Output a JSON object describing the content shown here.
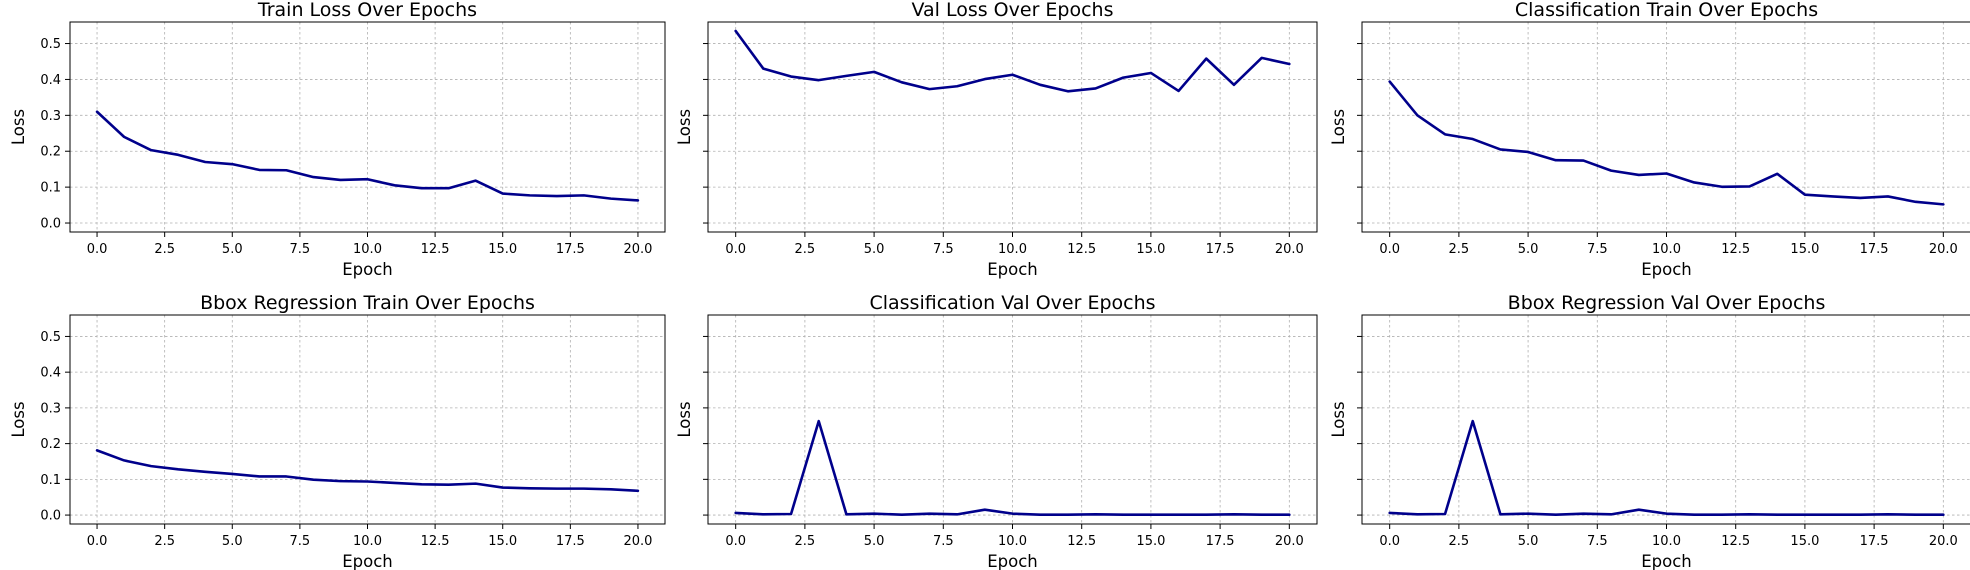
{
  "figure": {
    "line_color": "#00008b",
    "grid": true
  },
  "chart_data": [
    {
      "type": "line",
      "title": "Train Loss Over Epochs",
      "xlabel": "Epoch",
      "ylabel": "Loss",
      "xlim": [
        -1,
        21
      ],
      "ylim": [
        -0.025,
        0.56
      ],
      "xticks": [
        0,
        2.5,
        5,
        7.5,
        10,
        12.5,
        15,
        17.5,
        20
      ],
      "xtick_labels": [
        "0.0",
        "2.5",
        "5.0",
        "7.5",
        "10.0",
        "12.5",
        "15.0",
        "17.5",
        "20.0"
      ],
      "yticks": [
        0,
        0.1,
        0.2,
        0.3,
        0.4,
        0.5
      ],
      "ytick_labels": [
        "0.0",
        "0.1",
        "0.2",
        "0.3",
        "0.4",
        "0.5"
      ],
      "series": [
        {
          "x": [
            0,
            1,
            2,
            3,
            4,
            5,
            6,
            7,
            8,
            9,
            10,
            11,
            12,
            13,
            14,
            15,
            16,
            17,
            18,
            19,
            20
          ],
          "y": [
            0.31,
            0.24,
            0.203,
            0.19,
            0.17,
            0.164,
            0.148,
            0.147,
            0.128,
            0.12,
            0.122,
            0.105,
            0.097,
            0.097,
            0.118,
            0.082,
            0.077,
            0.075,
            0.077,
            0.068,
            0.063
          ]
        }
      ]
    },
    {
      "type": "line",
      "title": "Val Loss Over Epochs",
      "xlabel": "Epoch",
      "ylabel": "Loss",
      "xlim": [
        -1,
        21
      ],
      "ylim": [
        -0.025,
        0.56
      ],
      "xticks": [
        0,
        2.5,
        5,
        7.5,
        10,
        12.5,
        15,
        17.5,
        20
      ],
      "xtick_labels": [
        "0.0",
        "2.5",
        "5.0",
        "7.5",
        "10.0",
        "12.5",
        "15.0",
        "17.5",
        "20.0"
      ],
      "yticks": [
        0,
        0.1,
        0.2,
        0.3,
        0.4,
        0.5
      ],
      "ytick_labels": [],
      "series": [
        {
          "x": [
            0,
            1,
            2,
            3,
            4,
            5,
            6,
            7,
            8,
            9,
            10,
            11,
            12,
            13,
            14,
            15,
            16,
            17,
            18,
            19,
            20
          ],
          "y": [
            0.535,
            0.43,
            0.408,
            0.398,
            0.41,
            0.421,
            0.392,
            0.373,
            0.381,
            0.401,
            0.413,
            0.385,
            0.367,
            0.375,
            0.405,
            0.418,
            0.368,
            0.458,
            0.385,
            0.46,
            0.443
          ]
        }
      ]
    },
    {
      "type": "line",
      "title": "Classification Train Over Epochs",
      "xlabel": "Epoch",
      "ylabel": "Loss",
      "xlim": [
        -1,
        21
      ],
      "ylim": [
        -0.025,
        0.56
      ],
      "xticks": [
        0,
        2.5,
        5,
        7.5,
        10,
        12.5,
        15,
        17.5,
        20
      ],
      "xtick_labels": [
        "0.0",
        "2.5",
        "5.0",
        "7.5",
        "10.0",
        "12.5",
        "15.0",
        "17.5",
        "20.0"
      ],
      "yticks": [
        0,
        0.1,
        0.2,
        0.3,
        0.4,
        0.5
      ],
      "ytick_labels": [],
      "series": [
        {
          "x": [
            0,
            1,
            2,
            3,
            4,
            5,
            6,
            7,
            8,
            9,
            10,
            11,
            12,
            13,
            14,
            15,
            16,
            17,
            18,
            19,
            20
          ],
          "y": [
            0.394,
            0.3,
            0.247,
            0.234,
            0.205,
            0.198,
            0.175,
            0.174,
            0.146,
            0.134,
            0.138,
            0.113,
            0.101,
            0.102,
            0.137,
            0.079,
            0.074,
            0.07,
            0.074,
            0.059,
            0.052
          ]
        }
      ]
    },
    {
      "type": "line",
      "title": "Bbox Regression Train Over Epochs",
      "xlabel": "Epoch",
      "ylabel": "Loss",
      "xlim": [
        -1,
        21
      ],
      "ylim": [
        -0.025,
        0.56
      ],
      "xticks": [
        0,
        2.5,
        5,
        7.5,
        10,
        12.5,
        15,
        17.5,
        20
      ],
      "xtick_labels": [
        "0.0",
        "2.5",
        "5.0",
        "7.5",
        "10.0",
        "12.5",
        "15.0",
        "17.5",
        "20.0"
      ],
      "yticks": [
        0,
        0.1,
        0.2,
        0.3,
        0.4,
        0.5
      ],
      "ytick_labels": [
        "0.0",
        "0.1",
        "0.2",
        "0.3",
        "0.4",
        "0.5"
      ],
      "series": [
        {
          "x": [
            0,
            1,
            2,
            3,
            4,
            5,
            6,
            7,
            8,
            9,
            10,
            11,
            12,
            13,
            14,
            15,
            16,
            17,
            18,
            19,
            20
          ],
          "y": [
            0.181,
            0.153,
            0.137,
            0.128,
            0.121,
            0.115,
            0.108,
            0.108,
            0.099,
            0.095,
            0.094,
            0.09,
            0.086,
            0.085,
            0.088,
            0.077,
            0.075,
            0.074,
            0.074,
            0.072,
            0.068
          ]
        }
      ]
    },
    {
      "type": "line",
      "title": "Classification Val Over Epochs",
      "xlabel": "Epoch",
      "ylabel": "Loss",
      "xlim": [
        -1,
        21
      ],
      "ylim": [
        -0.025,
        0.56
      ],
      "xticks": [
        0,
        2.5,
        5,
        7.5,
        10,
        12.5,
        15,
        17.5,
        20
      ],
      "xtick_labels": [
        "0.0",
        "2.5",
        "5.0",
        "7.5",
        "10.0",
        "12.5",
        "15.0",
        "17.5",
        "20.0"
      ],
      "yticks": [
        0,
        0.1,
        0.2,
        0.3,
        0.4,
        0.5
      ],
      "ytick_labels": [],
      "series": [
        {
          "x": [
            0,
            1,
            2,
            3,
            4,
            5,
            6,
            7,
            8,
            9,
            10,
            11,
            12,
            13,
            14,
            15,
            16,
            17,
            18,
            19,
            20
          ],
          "y": [
            0.006,
            0.002,
            0.003,
            0.263,
            0.002,
            0.004,
            0.001,
            0.004,
            0.002,
            0.015,
            0.004,
            0.001,
            0.001,
            0.002,
            0.001,
            0.001,
            0.001,
            0.001,
            0.002,
            0.001,
            0.001
          ]
        }
      ]
    },
    {
      "type": "line",
      "title": "Bbox Regression Val Over Epochs",
      "xlabel": "Epoch",
      "ylabel": "Loss",
      "xlim": [
        -1,
        21
      ],
      "ylim": [
        -0.025,
        0.56
      ],
      "xticks": [
        0,
        2.5,
        5,
        7.5,
        10,
        12.5,
        15,
        17.5,
        20
      ],
      "xtick_labels": [
        "0.0",
        "2.5",
        "5.0",
        "7.5",
        "10.0",
        "12.5",
        "15.0",
        "17.5",
        "20.0"
      ],
      "yticks": [
        0,
        0.1,
        0.2,
        0.3,
        0.4,
        0.5
      ],
      "ytick_labels": [],
      "series": [
        {
          "x": [
            0,
            1,
            2,
            3,
            4,
            5,
            6,
            7,
            8,
            9,
            10,
            11,
            12,
            13,
            14,
            15,
            16,
            17,
            18,
            19,
            20
          ],
          "y": [
            0.006,
            0.002,
            0.003,
            0.263,
            0.002,
            0.004,
            0.001,
            0.004,
            0.002,
            0.015,
            0.004,
            0.001,
            0.001,
            0.002,
            0.001,
            0.001,
            0.001,
            0.001,
            0.002,
            0.001,
            0.001
          ]
        }
      ]
    }
  ]
}
